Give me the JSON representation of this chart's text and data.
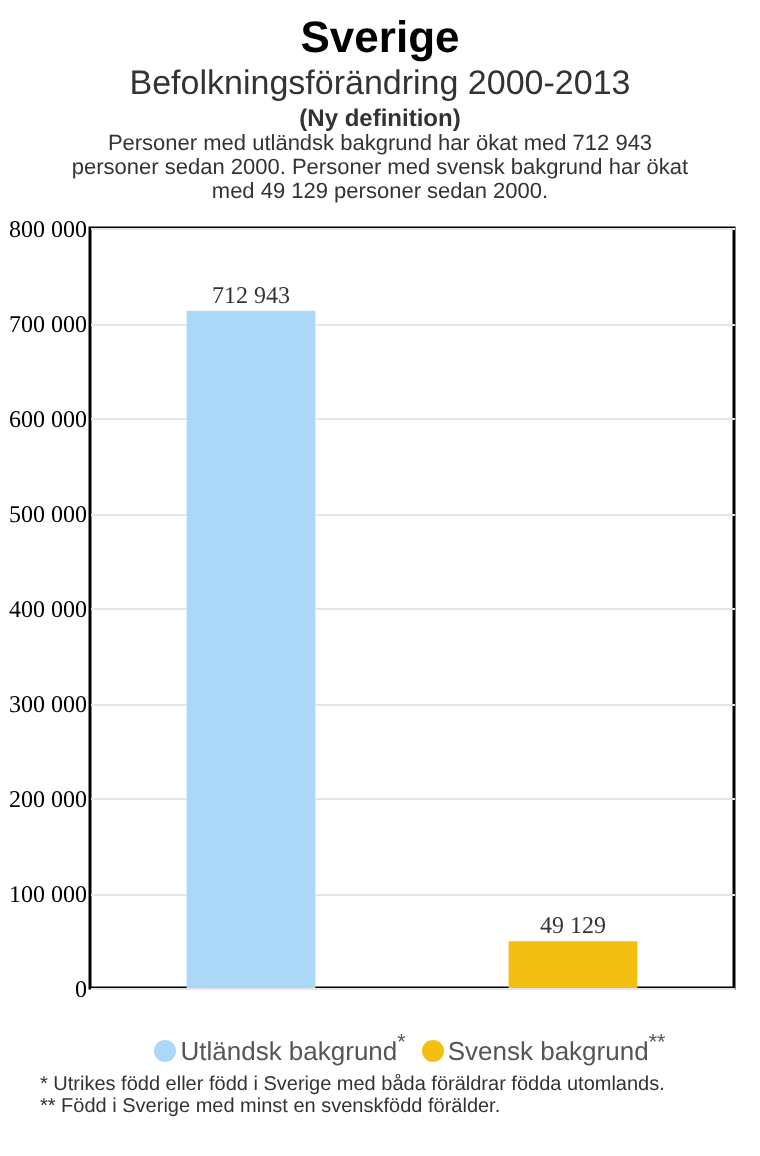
{
  "chart_data": {
    "type": "bar",
    "title": "Sverige",
    "subtitle": "Befolkningsförändring 2000-2013",
    "annotations": [
      "(Ny definition)",
      "Personer med utländsk bakgrund har ökat med 712 943 personer sedan 2000. Personer med svensk bakgrund har ökat med 49 129 personer sedan 2000.",
      "* Utrikes född eller född i Sverige med båda föräldrar födda utomlands.",
      "** Född i Sverige med minst en svenskfödd förälder."
    ],
    "categories": [
      null,
      null
    ],
    "series": [
      {
        "name": "Utländsk bakgrund$^{*}$",
        "color": "#acd8f7",
        "values": [
          712943,
          null
        ]
      },
      {
        "name": "Svensk bakgrund$^{**}$",
        "color": "#f3bf12",
        "values": [
          null,
          49129
        ]
      }
    ],
    "ylim": [
      0,
      800000
    ],
    "yticks": [
      0,
      {
        "value": 100000,
        "label": "100 000"
      },
      {
        "value": 200000,
        "label": "200 000"
      },
      {
        "value": 300000,
        "label": "300 000"
      },
      {
        "value": 400000,
        "label": "400 000"
      },
      {
        "value": 500000,
        "label": "500 000"
      },
      {
        "value": 600000,
        "label": "600 000"
      },
      {
        "value": 700000,
        "label": "700 000"
      },
      {
        "value": 800000,
        "label": "800 000"
      }
    ],
    "grid": "y",
    "legend": "bottom",
    "data_labels": true
  }
}
